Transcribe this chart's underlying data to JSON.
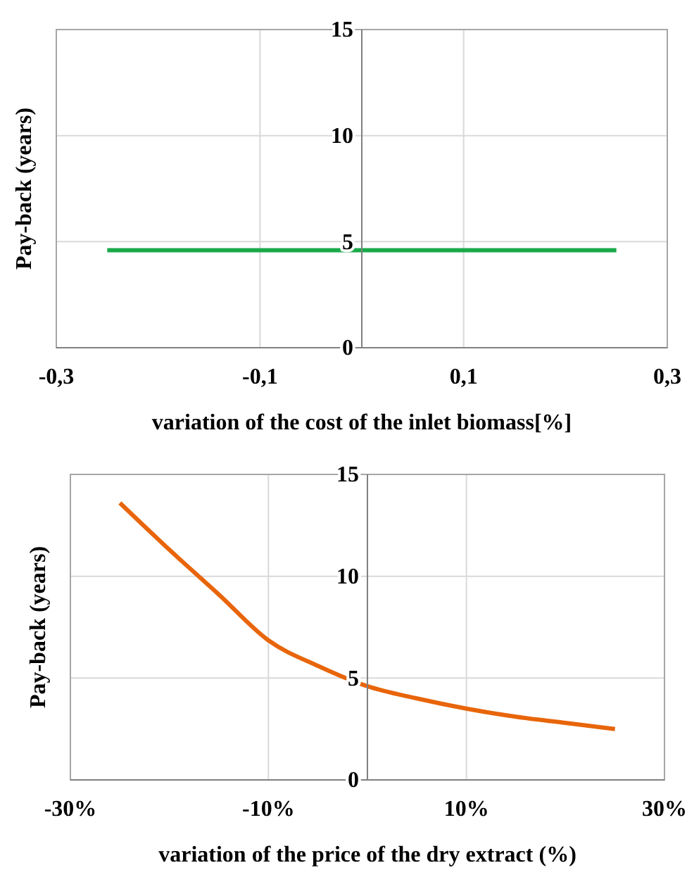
{
  "chart_data": [
    {
      "type": "line",
      "xlabel": "variation of the cost of the inlet biomass[%]",
      "ylabel": "Pay-back (years)",
      "xlim": [
        -0.3,
        0.3
      ],
      "xticks": [
        {
          "value": -0.3,
          "label": "-0,3"
        },
        {
          "value": -0.1,
          "label": "-0,1"
        },
        {
          "value": 0.1,
          "label": "0,1"
        },
        {
          "value": 0.3,
          "label": "0,3"
        }
      ],
      "ylim": [
        0,
        15
      ],
      "yticks": [
        0,
        5,
        10,
        15
      ],
      "grid": true,
      "marker": "none",
      "line_style": "solid",
      "series": [
        {
          "color": "#1aaa4a",
          "x": [
            -0.25,
            0.25
          ],
          "values": [
            4.6,
            4.6
          ]
        }
      ]
    },
    {
      "type": "line",
      "xlabel": "variation of the price of the dry extract (%)",
      "ylabel": "Pay-back (years)",
      "xlim": [
        -30,
        30
      ],
      "xticks": [
        {
          "value": -30,
          "label": "-30%"
        },
        {
          "value": -10,
          "label": "-10%"
        },
        {
          "value": 10,
          "label": "10%"
        },
        {
          "value": 30,
          "label": "30%"
        }
      ],
      "ylim": [
        0,
        15
      ],
      "yticks": [
        0,
        5,
        10,
        15
      ],
      "grid": true,
      "marker": "none",
      "line_style": "solid",
      "series": [
        {
          "color": "#e8650a",
          "x": [
            -25,
            -20,
            -15,
            -10,
            -5,
            0,
            5,
            10,
            15,
            20,
            25
          ],
          "values": [
            13.6,
            11.3,
            9.1,
            6.85,
            5.6,
            4.6,
            4.0,
            3.5,
            3.1,
            2.8,
            2.5
          ]
        }
      ]
    }
  ]
}
